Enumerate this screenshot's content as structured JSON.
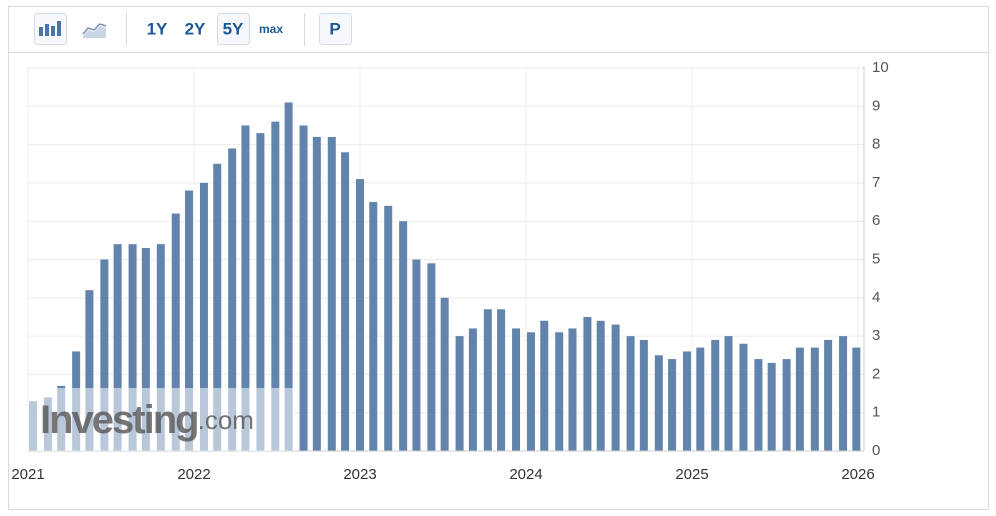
{
  "toolbar": {
    "ranges": [
      "1Y",
      "2Y",
      "5Y",
      "max"
    ],
    "print": "P"
  },
  "watermark": {
    "brand": "Investing",
    "suffix": ".com"
  },
  "chart_data": {
    "type": "bar",
    "color": "#6283ab",
    "grid": true,
    "x": [
      2021.03,
      2021.12,
      2021.2,
      2021.29,
      2021.37,
      2021.46,
      2021.54,
      2021.63,
      2021.71,
      2021.8,
      2021.89,
      2021.97,
      2022.06,
      2022.14,
      2022.23,
      2022.31,
      2022.4,
      2022.49,
      2022.57,
      2022.66,
      2022.74,
      2022.83,
      2022.91,
      2023.0,
      2023.08,
      2023.17,
      2023.26,
      2023.34,
      2023.43,
      2023.51,
      2023.6,
      2023.68,
      2023.77,
      2023.85,
      2023.94,
      2024.03,
      2024.11,
      2024.2,
      2024.28,
      2024.37,
      2024.45,
      2024.54,
      2024.63,
      2024.71,
      2024.8,
      2024.88,
      2024.97,
      2025.05,
      2025.14,
      2025.22,
      2025.31,
      2025.4,
      2025.48,
      2025.57,
      2025.65,
      2025.74,
      2025.82,
      2025.91,
      2025.99
    ],
    "values": [
      1.3,
      1.4,
      1.7,
      2.6,
      4.2,
      5.0,
      5.4,
      5.4,
      5.3,
      5.4,
      6.2,
      6.8,
      7.0,
      7.5,
      7.9,
      8.5,
      8.3,
      8.6,
      9.1,
      8.5,
      8.2,
      8.2,
      7.8,
      7.1,
      6.5,
      6.4,
      6.0,
      5.0,
      4.9,
      4.0,
      3.0,
      3.2,
      3.7,
      3.7,
      3.2,
      3.1,
      3.4,
      3.1,
      3.2,
      3.5,
      3.4,
      3.3,
      3.0,
      2.9,
      2.5,
      2.4,
      2.6,
      2.7,
      2.9,
      3.0,
      2.8,
      2.4,
      2.3,
      2.4,
      2.7,
      2.7,
      2.9,
      3.0,
      2.7
    ],
    "xlim": [
      2021,
      2026
    ],
    "xticks": [
      2021,
      2022,
      2023,
      2024,
      2025,
      2026
    ],
    "ylim": [
      0,
      10
    ],
    "yticks": [
      0,
      1,
      2,
      3,
      4,
      5,
      6,
      7,
      8,
      9,
      10
    ]
  }
}
